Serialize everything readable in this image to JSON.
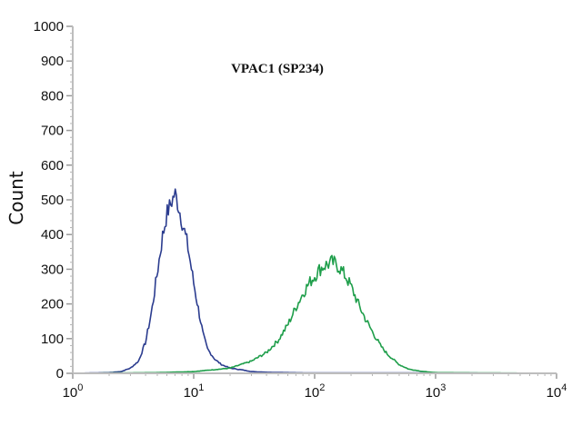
{
  "chart_data": {
    "type": "line",
    "title": "VPAC1 (SP234)",
    "ylabel": "Count",
    "xlabel": "",
    "x_scale": "log",
    "xlim": [
      1,
      10000
    ],
    "ylim": [
      0,
      1000
    ],
    "y_ticks": [
      0,
      100,
      200,
      300,
      400,
      500,
      600,
      700,
      800,
      900,
      1000
    ],
    "y_tick_labels": [
      "0",
      "100",
      "200",
      "300",
      "400",
      "500",
      "600",
      "700",
      "800",
      "900",
      "1000"
    ],
    "x_ticks": [
      1,
      10,
      100,
      1000,
      10000
    ],
    "x_tick_labels": [
      {
        "base": "10",
        "exp": "0"
      },
      {
        "base": "10",
        "exp": "1"
      },
      {
        "base": "10",
        "exp": "2"
      },
      {
        "base": "10",
        "exp": "3"
      },
      {
        "base": "10",
        "exp": "4"
      }
    ],
    "grid": false,
    "legend": "none",
    "series": [
      {
        "color": "#2b3c8f",
        "x": [
          1,
          2,
          2.5,
          3,
          3.5,
          4,
          4.5,
          5,
          5.5,
          6,
          6.5,
          7,
          7.5,
          8,
          9,
          10,
          11,
          12,
          13,
          15,
          17,
          20,
          25,
          30,
          40,
          60,
          100,
          1000,
          10000
        ],
        "y": [
          0,
          2,
          5,
          15,
          35,
          90,
          180,
          290,
          390,
          460,
          490,
          520,
          480,
          440,
          360,
          260,
          180,
          110,
          70,
          40,
          25,
          15,
          10,
          5,
          3,
          2,
          1,
          1,
          0
        ]
      },
      {
        "color": "#1e9e4a",
        "x": [
          1,
          5,
          10,
          20,
          30,
          40,
          50,
          60,
          70,
          80,
          90,
          100,
          110,
          120,
          130,
          140,
          150,
          160,
          180,
          200,
          230,
          260,
          300,
          350,
          400,
          500,
          600,
          800,
          1000,
          10000
        ],
        "y": [
          0,
          2,
          5,
          15,
          35,
          60,
          95,
          140,
          190,
          230,
          260,
          280,
          300,
          310,
          315,
          320,
          315,
          305,
          280,
          250,
          200,
          160,
          120,
          80,
          55,
          25,
          12,
          5,
          2,
          0
        ]
      }
    ]
  }
}
